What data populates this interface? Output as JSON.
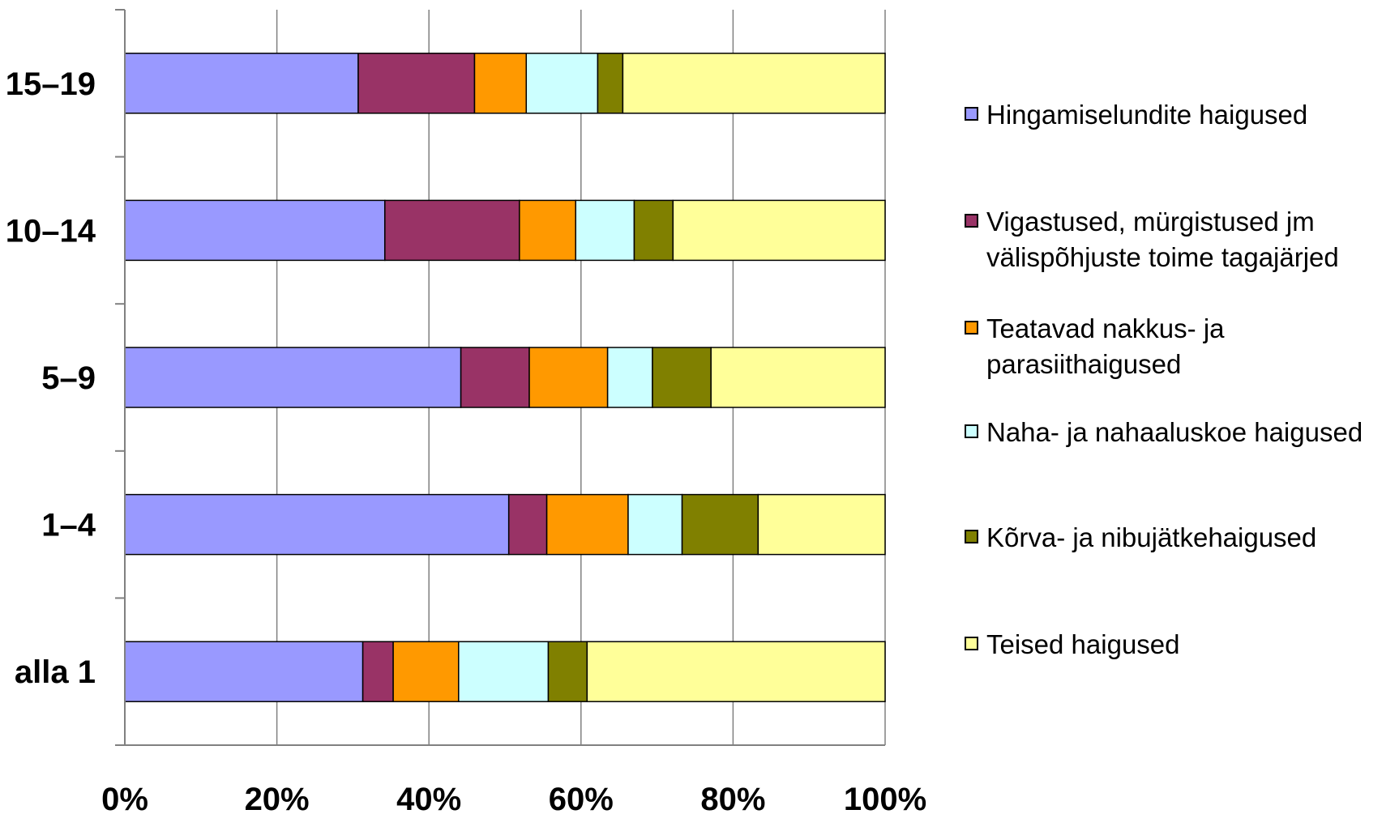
{
  "chart_data": {
    "type": "bar",
    "orientation": "horizontal",
    "stacked": "percent",
    "title": "",
    "xlabel": "",
    "ylabel": "",
    "categories": [
      "15–19",
      "10–14",
      "5–9",
      "1–4",
      "alla 1"
    ],
    "x_ticks": [
      "0%",
      "20%",
      "40%",
      "60%",
      "80%",
      "100%"
    ],
    "xlim": [
      0,
      100
    ],
    "grid": "vertical",
    "legend_position": "right",
    "series": [
      {
        "name": "Hingamiselundite haigused",
        "color": "#9999ff",
        "values": [
          30.7,
          34.2,
          44.2,
          50.5,
          31.3
        ]
      },
      {
        "name": "Vigastused, mürgistused jm\nvälispõhjuste toime tagajärjed",
        "color": "#993366",
        "values": [
          15.3,
          17.7,
          9.0,
          5.0,
          4.0
        ]
      },
      {
        "name": "Teatavad nakkus- ja\nparasiithaigused",
        "color": "#ff9900",
        "values": [
          6.8,
          7.4,
          10.3,
          10.7,
          8.6
        ]
      },
      {
        "name": "Naha- ja nahaaluskoe haigused",
        "color": "#ccffff",
        "values": [
          9.4,
          7.7,
          5.9,
          7.1,
          11.8
        ]
      },
      {
        "name": "Kõrva- ja nibujätkehaigused",
        "color": "#808000",
        "values": [
          3.3,
          5.1,
          7.7,
          10.0,
          5.1
        ]
      },
      {
        "name": "Teised haigused",
        "color": "#ffff99",
        "values": [
          34.5,
          27.9,
          22.9,
          16.7,
          39.2
        ]
      }
    ]
  }
}
